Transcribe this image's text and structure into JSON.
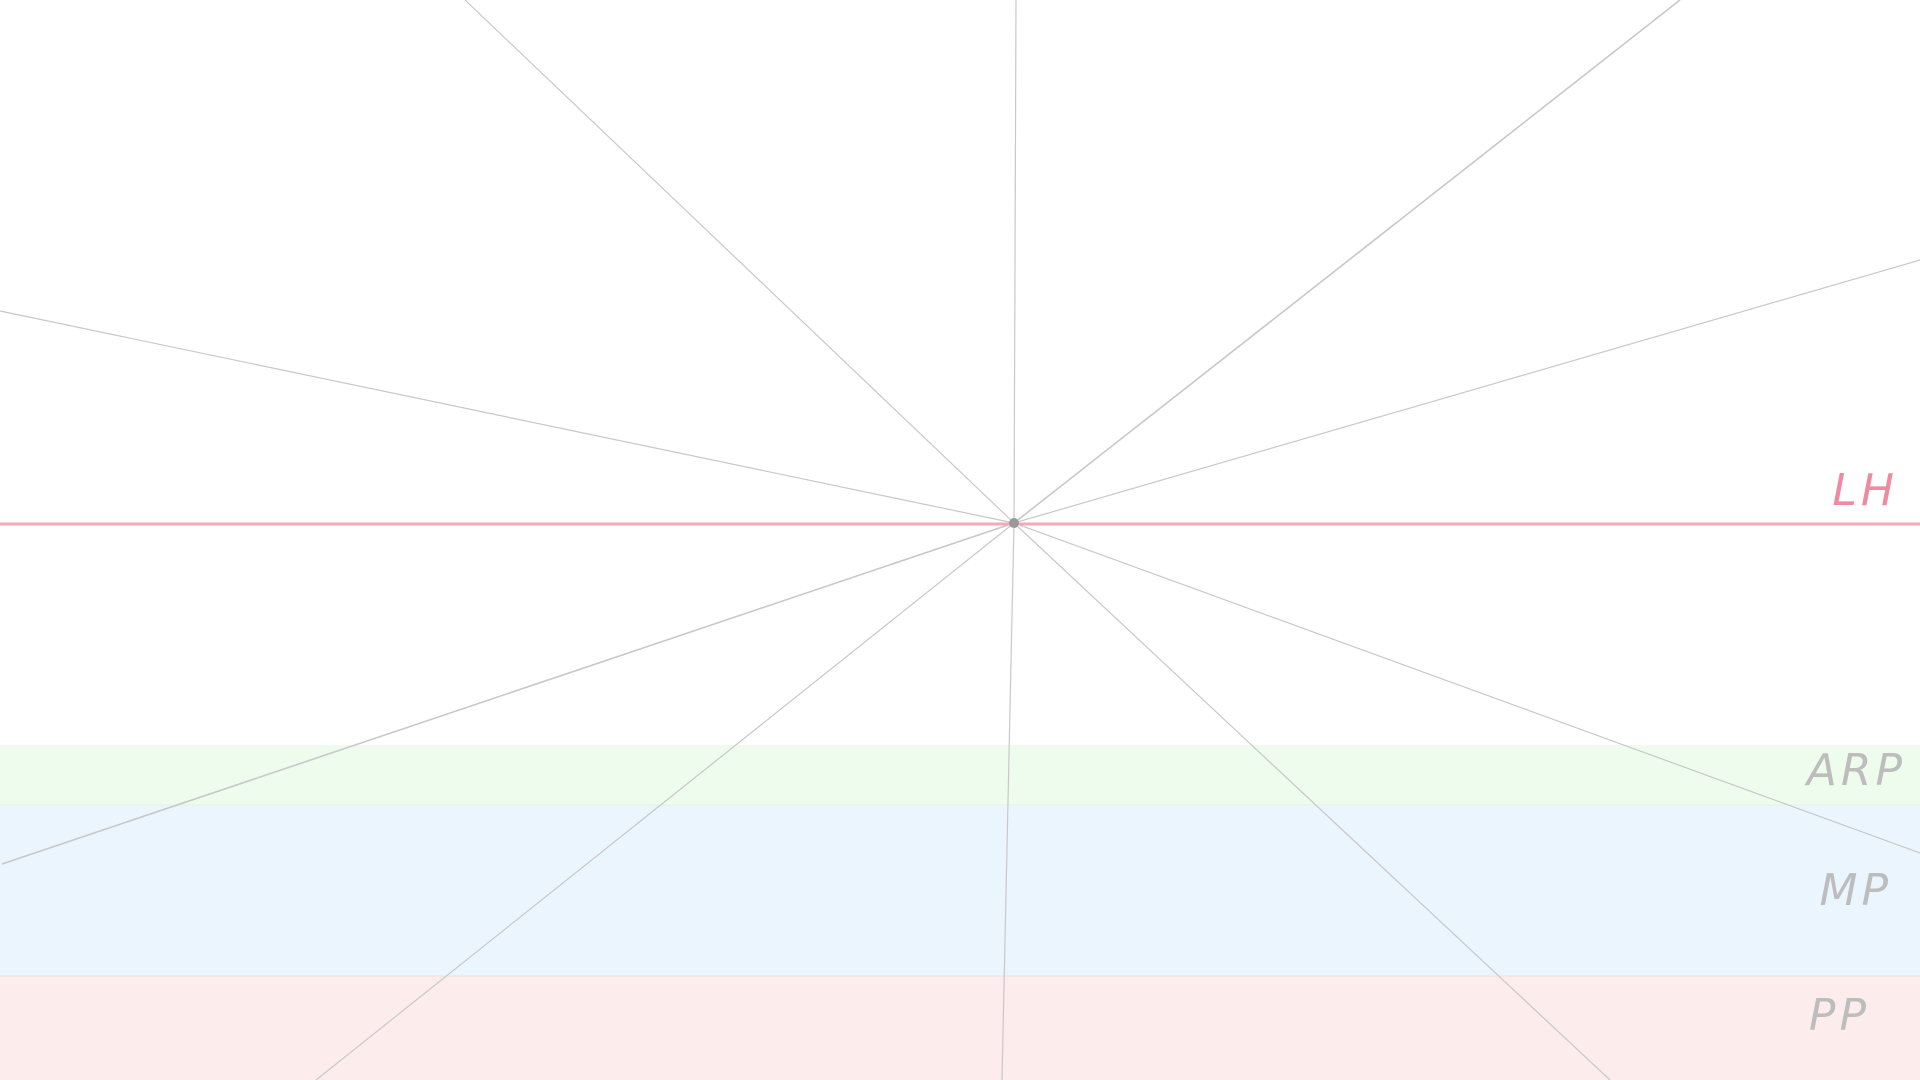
{
  "horizon": {
    "label": "LH"
  },
  "bands": [
    {
      "label": "ARP"
    },
    {
      "label": "MP"
    },
    {
      "label": "PP"
    }
  ]
}
